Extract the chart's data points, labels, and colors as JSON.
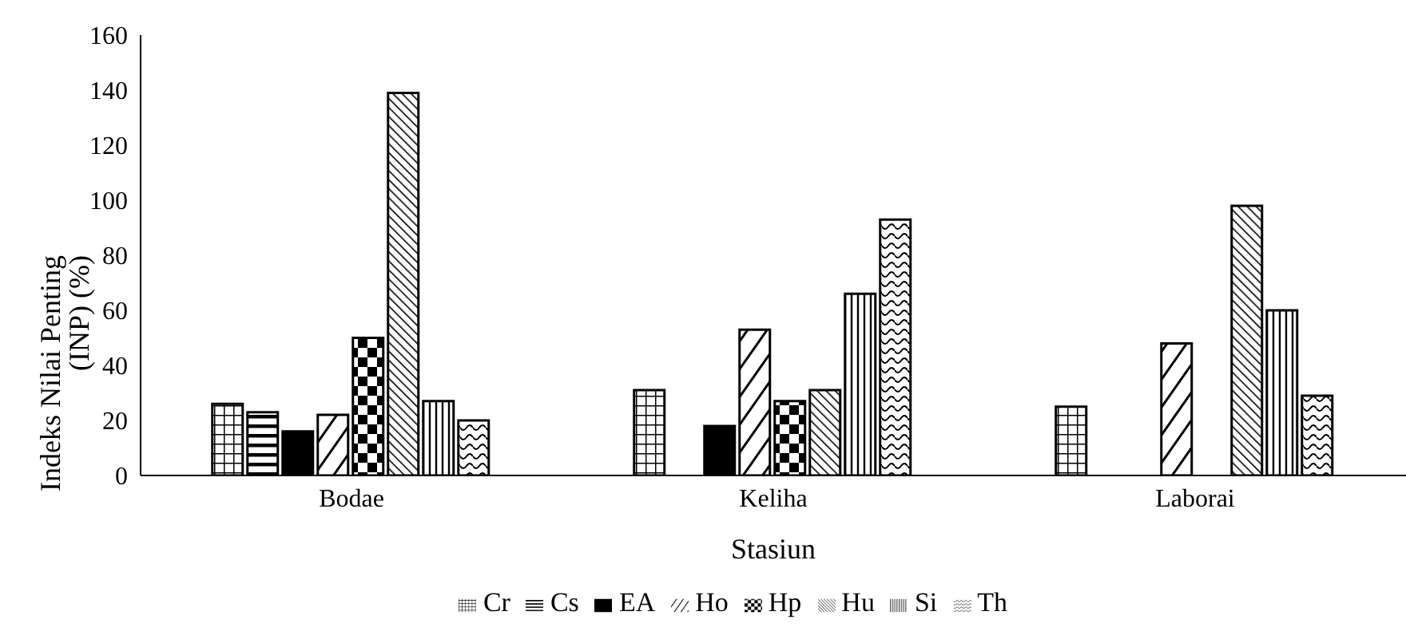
{
  "chart_data": {
    "type": "bar",
    "xlabel": "Stasiun",
    "ylabel": "Indeks Nilai Penting (INP) (%)",
    "categories": [
      "Bodae",
      "Keliha",
      "Laborai"
    ],
    "series": [
      {
        "name": "Cr",
        "color": "#000000",
        "values": [
          26,
          31,
          25
        ]
      },
      {
        "name": "Cs",
        "color": "#000000",
        "values": [
          23,
          null,
          null
        ]
      },
      {
        "name": "EA",
        "color": "#000000",
        "values": [
          16,
          18,
          null
        ]
      },
      {
        "name": "Ho",
        "color": "#000000",
        "values": [
          22,
          53,
          48
        ]
      },
      {
        "name": "Hp",
        "color": "#000000",
        "values": [
          50,
          27,
          null
        ]
      },
      {
        "name": "Hu",
        "color": "#000000",
        "values": [
          139,
          31,
          98
        ]
      },
      {
        "name": "Si",
        "color": "#000000",
        "values": [
          27,
          66,
          60
        ]
      },
      {
        "name": "Th",
        "color": "#000000",
        "values": [
          20,
          93,
          29
        ]
      }
    ],
    "ylim": [
      0,
      160
    ],
    "yticks": [
      0,
      20,
      40,
      60,
      80,
      100,
      120,
      140,
      160
    ],
    "grid": false,
    "legend": "bottom"
  }
}
